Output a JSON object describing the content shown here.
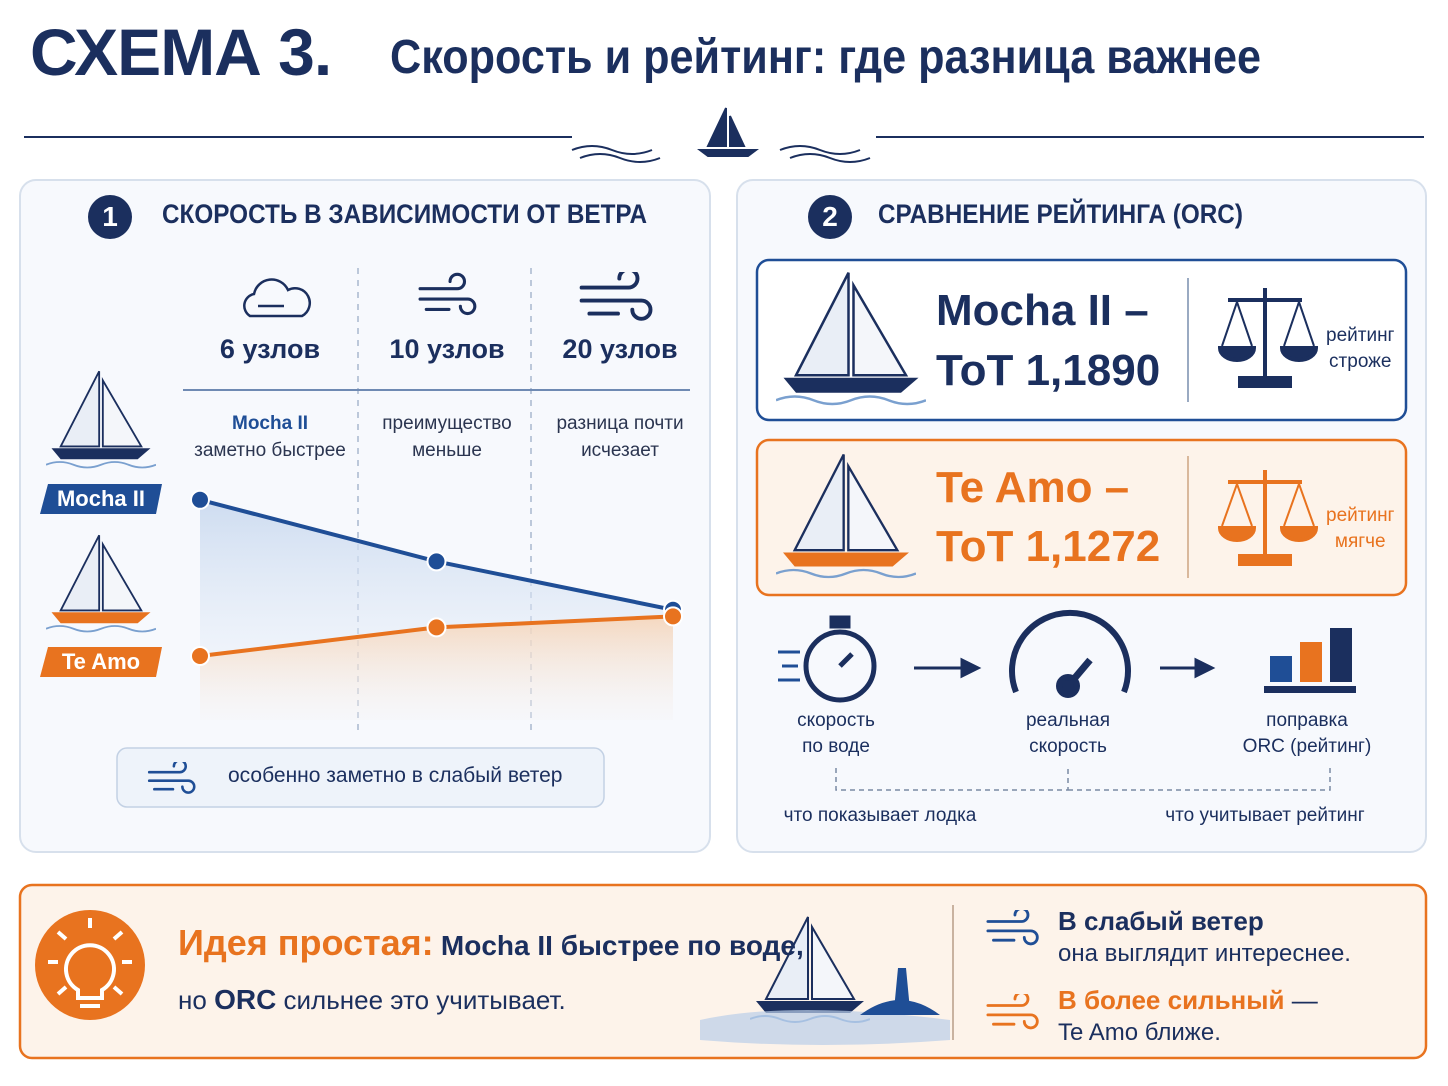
{
  "header": {
    "title": "СХЕМА 3.",
    "subtitle": "Скорость и рейтинг: где разница важнее"
  },
  "speed_panel": {
    "number": "1",
    "heading": "СКОРОСТЬ В ЗАВИСИМОСТИ ОТ ВЕТРА",
    "notes": [
      [
        "Mocha II",
        "заметно быстрее"
      ],
      [
        "преимущество",
        "меньше"
      ],
      [
        "разница почти",
        "исчезает"
      ]
    ],
    "footnote": "особенно заметно в слабый ветер"
  },
  "chart_data": {
    "type": "line",
    "categories": [
      "6 узлов",
      "10 узлов",
      "20 узлов"
    ],
    "series": [
      {
        "name": "Mocha II",
        "color": "#1f4e96",
        "values": [
          91,
          63,
          41
        ]
      },
      {
        "name": "Te Amo",
        "color": "#e8731f",
        "values": [
          20,
          33,
          38
        ]
      }
    ],
    "ylim": [
      0,
      100
    ]
  },
  "rating_panel": {
    "number": "2",
    "heading": "СРАВНЕНИЕ РЕЙТИНГА (ORC)",
    "cards": [
      {
        "name": "Mocha II –",
        "tot": "ToT 1,1890",
        "note": [
          "рейтинг",
          "строже"
        ]
      },
      {
        "name": "Te Amo –",
        "tot": "ToT 1,1272",
        "note": [
          "рейтинг",
          "мягче"
        ]
      }
    ],
    "flow": [
      [
        "скорость",
        "по воде"
      ],
      [
        "реальная",
        "скорость"
      ],
      [
        "поправка",
        "ORC (рейтинг)"
      ]
    ],
    "brackets": [
      "что показывает лодка",
      "что учитывает рейтинг"
    ]
  },
  "idea": {
    "lead": "Идея простая:",
    "line1": "Mocha II быстрее по воде,",
    "line2": [
      "но",
      "ORC",
      "сильнее это учитывает."
    ],
    "tips": [
      {
        "strong": "В слабый ветер",
        "rest": "она выглядит интереснее."
      },
      {
        "strong": "В более сильный",
        "dash": "—",
        "rest": "Te Amo ближе."
      }
    ]
  }
}
